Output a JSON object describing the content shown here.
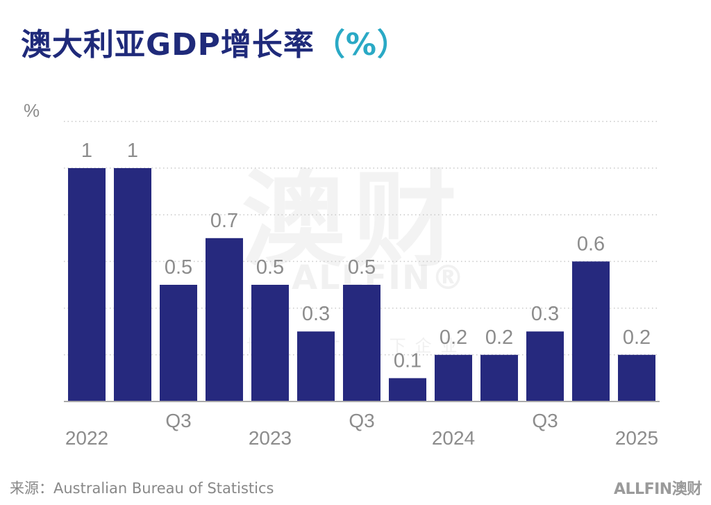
{
  "header": {
    "title_main": "澳大利亚GDP增长率",
    "title_paren": "（%）"
  },
  "watermark": {
    "big": "澳财",
    "brand": "ALLFIN®",
    "tagline": "博海聚才 领下企业"
  },
  "footer": {
    "source": "来源：Australian Bureau of Statistics",
    "brand": "ALLFIN澳财"
  },
  "colors": {
    "bar": "#26297e",
    "title": "#1f2a7a",
    "accent": "#2aa9c5",
    "label": "#8c8c8c",
    "grid": "#c8c8c8"
  },
  "chart_data": {
    "type": "bar",
    "ylabel": "%",
    "ylim": [
      0,
      1.2
    ],
    "grid": true,
    "grid_style": "dotted",
    "values": [
      1.0,
      1.0,
      0.5,
      0.7,
      0.5,
      0.3,
      0.5,
      0.1,
      0.2,
      0.2,
      0.3,
      0.6,
      0.2
    ],
    "value_labels": [
      "1",
      "1",
      "0.5",
      "0.7",
      "0.5",
      "0.3",
      "0.5",
      "0.1",
      "0.2",
      "0.2",
      "0.3",
      "0.6",
      "0.2"
    ],
    "tick_labels": [
      {
        "bar": 0,
        "text": "2022",
        "row": 2
      },
      {
        "bar": 2,
        "text": "Q3",
        "row": 1
      },
      {
        "bar": 4,
        "text": "2023",
        "row": 2
      },
      {
        "bar": 6,
        "text": "Q3",
        "row": 1
      },
      {
        "bar": 8,
        "text": "2024",
        "row": 2
      },
      {
        "bar": 10,
        "text": "Q3",
        "row": 1
      },
      {
        "bar": 12,
        "text": "2025",
        "row": 2
      }
    ]
  }
}
